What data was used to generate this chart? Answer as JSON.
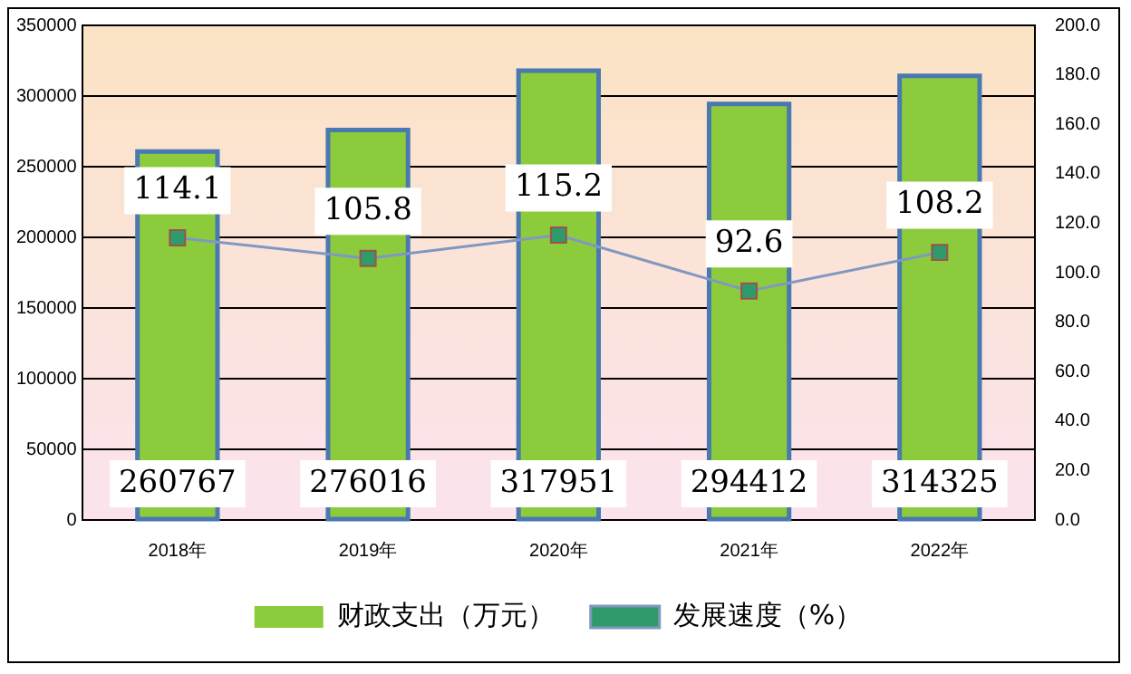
{
  "chart_data": {
    "type": "bar",
    "categories": [
      "2018年",
      "2019年",
      "2020年",
      "2021年",
      "2022年"
    ],
    "series": [
      {
        "name": "财政支出（万元）",
        "color": "#8ccc3c",
        "values": [
          260767,
          276016,
          317951,
          294412,
          314325
        ]
      },
      {
        "name": "发展速度（%）",
        "type": "line",
        "axis": "y2",
        "color": "#8098c0",
        "values": [
          114.1,
          105.8,
          115.2,
          92.6,
          108.2
        ]
      }
    ],
    "ylim": [
      0,
      350000
    ],
    "yticks": [
      0,
      50000,
      100000,
      150000,
      200000,
      250000,
      300000,
      350000
    ],
    "y2lim": [
      0,
      200
    ],
    "y2ticks": [
      {
        "value": 0,
        "label": "0.0"
      },
      {
        "value": 20,
        "label": "20.0"
      },
      {
        "value": 40,
        "label": "40.0"
      },
      {
        "value": 60,
        "label": "60.0"
      },
      {
        "value": 80,
        "label": "80.0"
      },
      {
        "value": 100,
        "label": "100.0"
      },
      {
        "value": 120,
        "label": "120.0"
      },
      {
        "value": 140,
        "label": "140.0"
      },
      {
        "value": 160,
        "label": "160.0"
      },
      {
        "value": 180,
        "label": "180.0"
      },
      {
        "value": 200,
        "label": "200.0"
      }
    ],
    "grid": "y",
    "legend": "bottom",
    "marker": "square",
    "data_labels": true
  }
}
